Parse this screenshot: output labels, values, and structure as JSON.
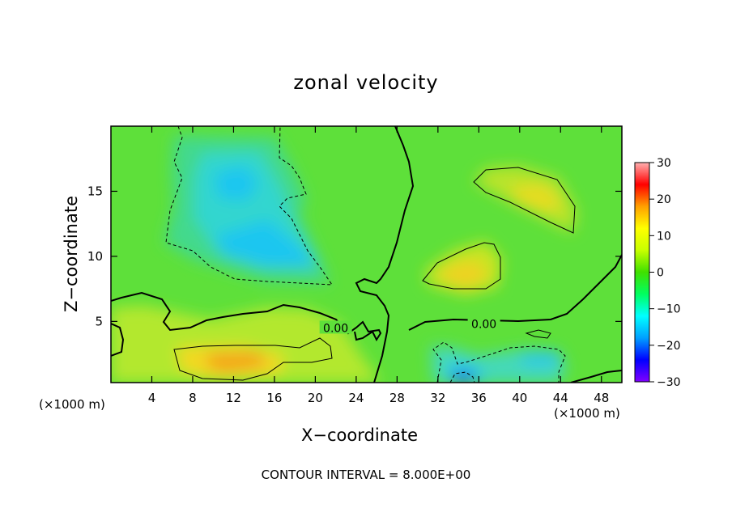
{
  "chart_data": {
    "type": "heatmap",
    "title": "zonal velocity",
    "xlabel": "X−coordinate",
    "ylabel": "Z−coordinate",
    "x_unit_label": "(×1000 m)",
    "x_ticks": [
      4,
      8,
      12,
      16,
      20,
      24,
      28,
      32,
      36,
      40,
      44,
      48
    ],
    "y_ticks": [
      5,
      10,
      15
    ],
    "xlim": [
      0,
      50
    ],
    "ylim": [
      0.3,
      20
    ],
    "colorbar": {
      "ticks": [
        30,
        20,
        10,
        0,
        -10,
        -20,
        -30
      ],
      "range": [
        -30,
        30
      ],
      "colors": [
        "#8000ff",
        "#0000ff",
        "#00a0ff",
        "#00ffff",
        "#00ff60",
        "#40e000",
        "#c8ff00",
        "#ffff00",
        "#ffa000",
        "#ff0000",
        "#ffb0b0"
      ]
    },
    "contour_interval_text": "CONTOUR INTERVAL = 8.000E+00",
    "contour_labels": [
      {
        "text": "0.00",
        "x": 22,
        "z": 4.5
      },
      {
        "text": "0.00",
        "x": 36.5,
        "z": 4.8
      }
    ],
    "features": [
      {
        "kind": "max",
        "x": 12.5,
        "z": 2.0,
        "value": 12
      },
      {
        "kind": "max",
        "x": 35.5,
        "z": 8.3,
        "value": 9
      },
      {
        "kind": "max",
        "x": 42,
        "z": 14.8,
        "value": 9
      },
      {
        "kind": "min",
        "x": 14,
        "z": 11,
        "value": -11
      },
      {
        "kind": "min",
        "x": 34.5,
        "z": 0.4,
        "value": -20
      },
      {
        "kind": "min",
        "x": 41,
        "z": 2.3,
        "value": -8
      }
    ]
  },
  "text": {
    "title": "zonal velocity",
    "xlabel": "X−coordinate",
    "ylabel": "Z−coordinate",
    "xunit_left": "(×1000 m)",
    "xunit_right": "(×1000 m)",
    "footer": "CONTOUR INTERVAL = 8.000E+00"
  }
}
